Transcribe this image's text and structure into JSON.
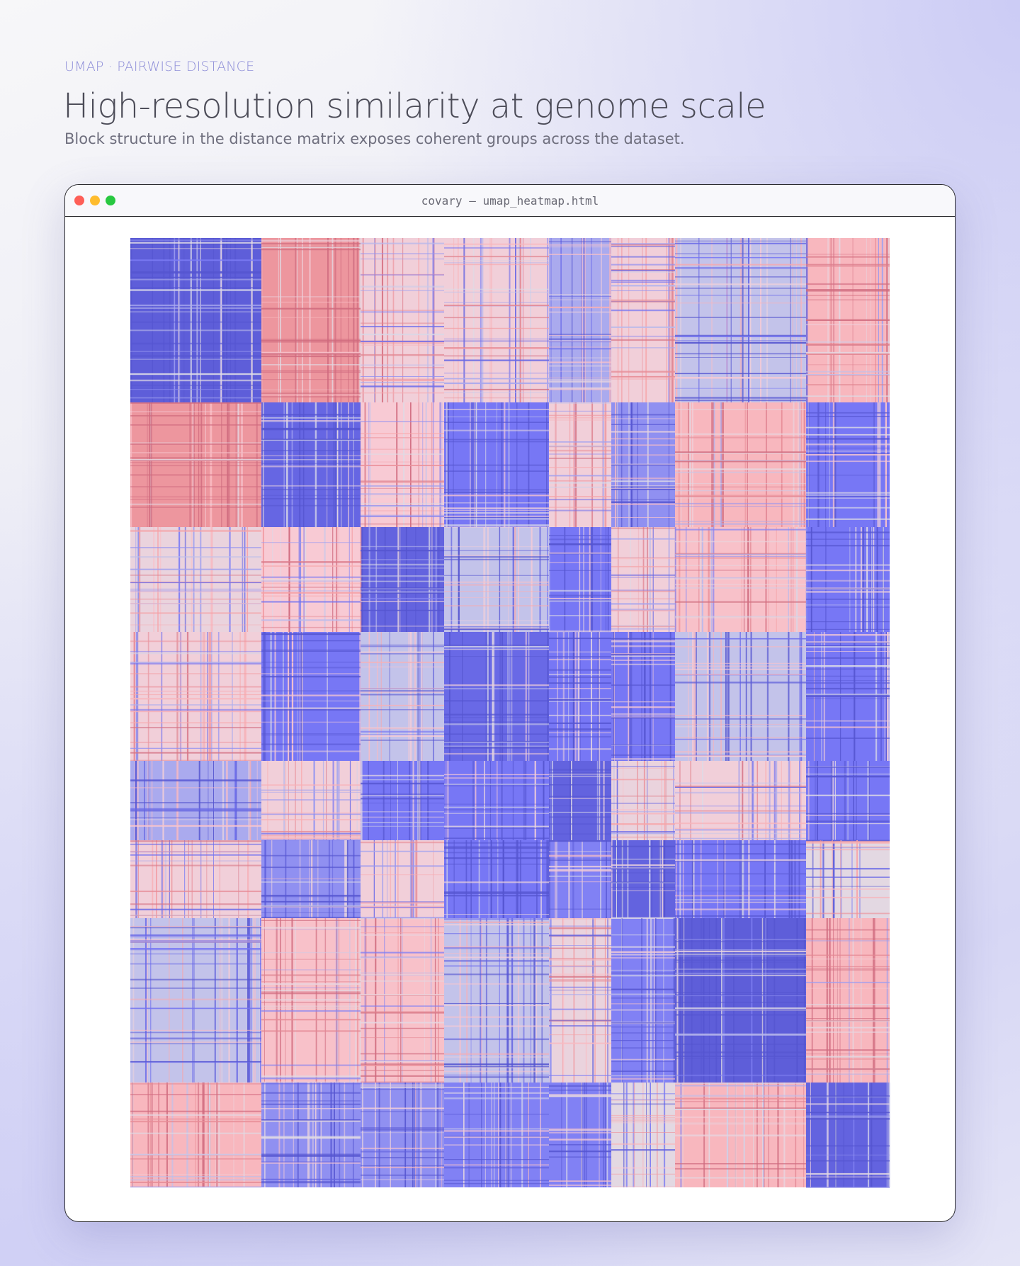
{
  "header": {
    "eyebrow": "UMAP · PAIRWISE DISTANCE",
    "title": "High-resolution similarity at genome scale",
    "subtitle": "Block structure in the distance matrix exposes coherent groups across the dataset."
  },
  "window": {
    "title": "covary  —  umap_heatmap.html"
  },
  "colors": {
    "near": "#5555d0",
    "mid": "#7777f5",
    "neutral": "#dcdce6",
    "light_pink": "#f8cad4",
    "pink": "#f7a4a8",
    "far": "#cf6a7e"
  },
  "chart_data": {
    "type": "heatmap",
    "title": "",
    "xlabel": "",
    "ylabel": "",
    "color_scale": [
      "#5555d0",
      "#7777f5",
      "#dcdce6",
      "#f8cad4",
      "#f7a4a8",
      "#cf6a7e"
    ],
    "cluster_widths": [
      185,
      140,
      118,
      148,
      88,
      90,
      185,
      118
    ],
    "cluster_heights": [
      232,
      176,
      148,
      182,
      112,
      110,
      232,
      148
    ],
    "block_values": [
      [
        0.05,
        0.85,
        0.55,
        0.55,
        0.3,
        0.55,
        0.35,
        0.7
      ],
      [
        0.85,
        0.1,
        0.6,
        0.2,
        0.55,
        0.25,
        0.7,
        0.2
      ],
      [
        0.5,
        0.6,
        0.08,
        0.35,
        0.2,
        0.55,
        0.65,
        0.2
      ],
      [
        0.55,
        0.2,
        0.35,
        0.12,
        0.2,
        0.2,
        0.35,
        0.2
      ],
      [
        0.3,
        0.55,
        0.2,
        0.2,
        0.08,
        0.5,
        0.55,
        0.2
      ],
      [
        0.55,
        0.25,
        0.55,
        0.2,
        0.22,
        0.08,
        0.2,
        0.45
      ],
      [
        0.35,
        0.65,
        0.65,
        0.35,
        0.5,
        0.22,
        0.05,
        0.7
      ],
      [
        0.7,
        0.25,
        0.25,
        0.22,
        0.22,
        0.45,
        0.7,
        0.08
      ]
    ]
  }
}
